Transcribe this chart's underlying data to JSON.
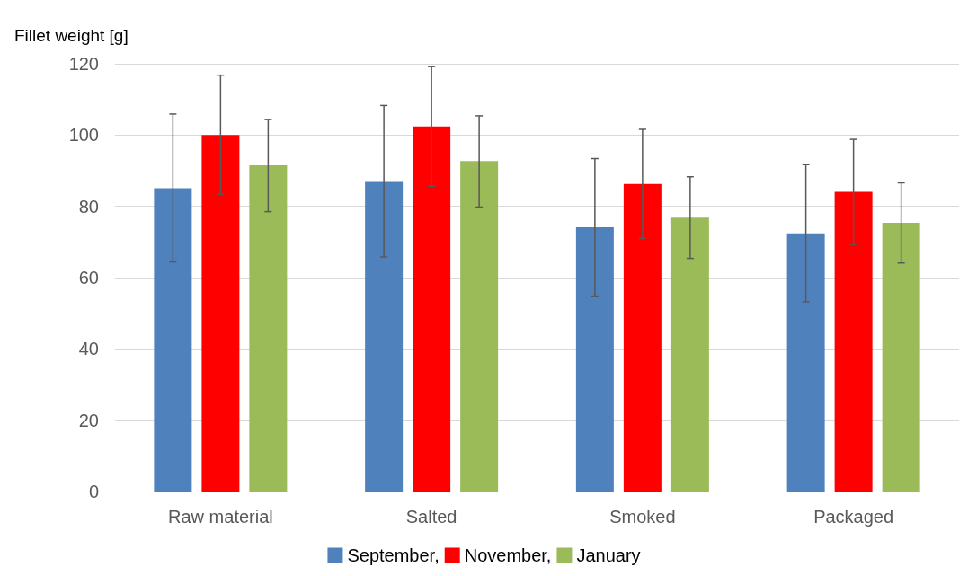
{
  "chart_data": {
    "type": "bar",
    "ylabel": "Fillet weight [g]",
    "categories": [
      "Raw material",
      "Salted",
      "Smoked",
      "Packaged"
    ],
    "series": [
      {
        "name": "September,",
        "color": "#4f81bd",
        "values": [
          85.1,
          87.1,
          74.1,
          72.4
        ],
        "errors": [
          [
            64.4,
            105.9
          ],
          [
            65.8,
            108.3
          ],
          [
            54.8,
            93.4
          ],
          [
            53.2,
            91.7
          ]
        ]
      },
      {
        "name": "November,",
        "color": "#ff0000",
        "values": [
          100,
          102.4,
          86.3,
          84.1
        ],
        "errors": [
          [
            83.4,
            116.8
          ],
          [
            85.6,
            119.2
          ],
          [
            71,
            101.6
          ],
          [
            69.3,
            98.8
          ]
        ]
      },
      {
        "name": "January",
        "color": "#9bbb59",
        "values": [
          91.5,
          92.7,
          76.8,
          75.4
        ],
        "errors": [
          [
            78.5,
            104.4
          ],
          [
            79.8,
            105.4
          ],
          [
            65.4,
            88.3
          ],
          [
            64.1,
            86.6
          ]
        ]
      }
    ],
    "ylim": [
      0,
      120
    ],
    "yticks": [
      0,
      20,
      40,
      60,
      80,
      100,
      120
    ],
    "grid": "y",
    "legend": "bottom"
  }
}
